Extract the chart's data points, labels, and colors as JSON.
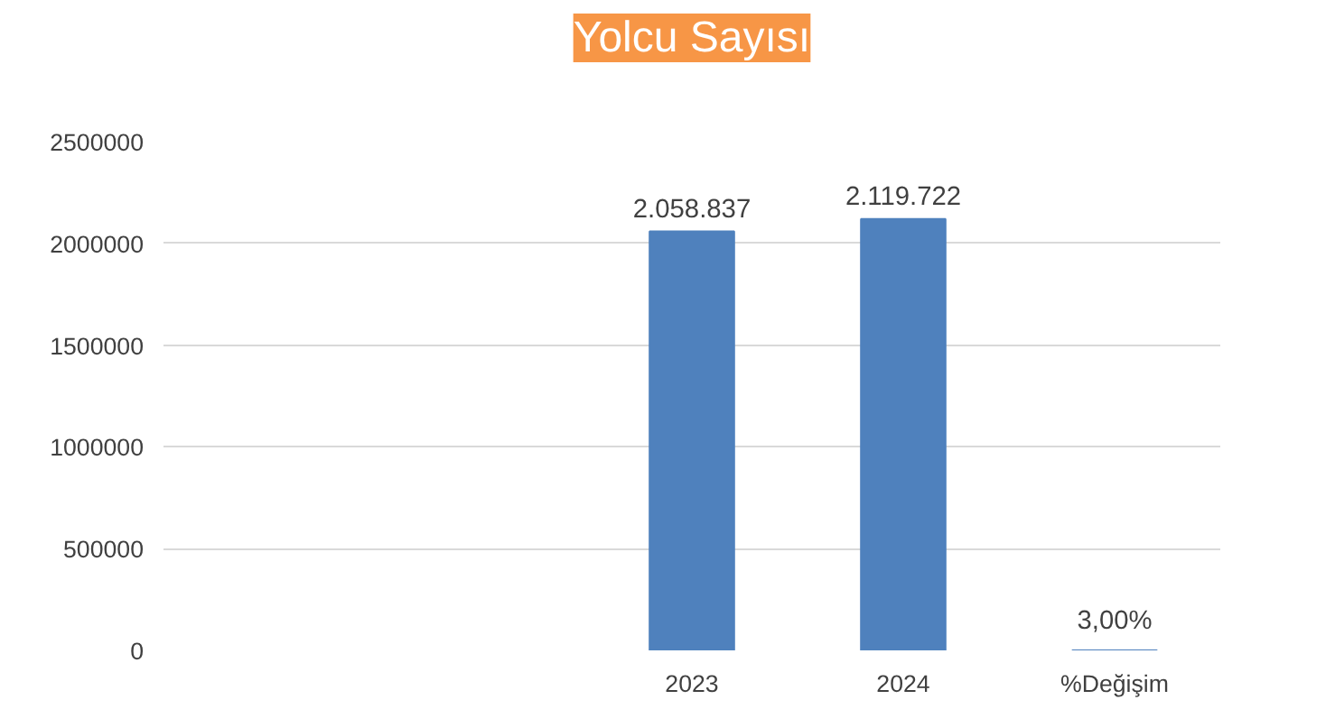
{
  "chart_data": {
    "type": "bar",
    "title": "Yolcu Sayısı",
    "categories": [
      null,
      null,
      "2023",
      "2024",
      "%Değişim"
    ],
    "values": [
      null,
      null,
      2058837,
      2119722,
      3
    ],
    "value_labels": [
      null,
      null,
      "2.058.837",
      "2.119.722",
      "3,00%"
    ],
    "color": "#4f81bd",
    "ylim": [
      0,
      2500000
    ],
    "yticks": [
      0,
      500000,
      1000000,
      1500000,
      2000000,
      2500000
    ],
    "grid": "y"
  }
}
